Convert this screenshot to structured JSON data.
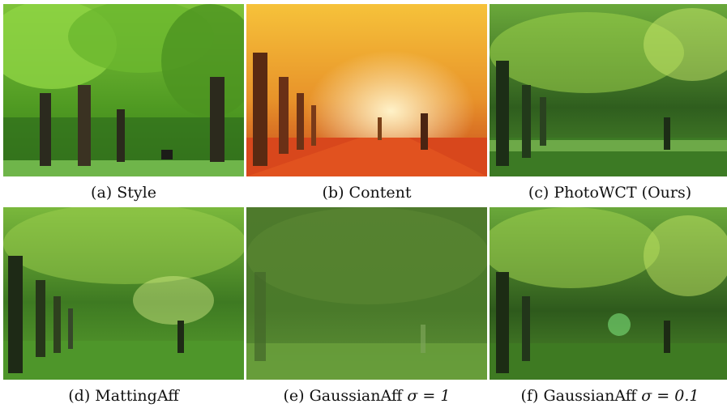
{
  "figure": {
    "panels": [
      {
        "id": "a",
        "caption": "(a) Style",
        "image": "style-park-photo"
      },
      {
        "id": "b",
        "caption": "(b) Content",
        "image": "content-autumn-avenue-photo"
      },
      {
        "id": "c",
        "caption": "(c) PhotoWCT (Ours)",
        "image": "photowct-result-photo"
      },
      {
        "id": "d",
        "caption": "(d) MattingAff",
        "image": "mattingaff-result-photo"
      },
      {
        "id": "e",
        "caption_prefix": "(e) GaussianAff ",
        "caption_math": "σ = 1",
        "image": "gaussianaff-sigma1-result-photo"
      },
      {
        "id": "f",
        "caption_prefix": "(f) GaussianAff ",
        "caption_math": "σ = 0.1",
        "image": "gaussianaff-sigma01-result-photo"
      }
    ]
  }
}
